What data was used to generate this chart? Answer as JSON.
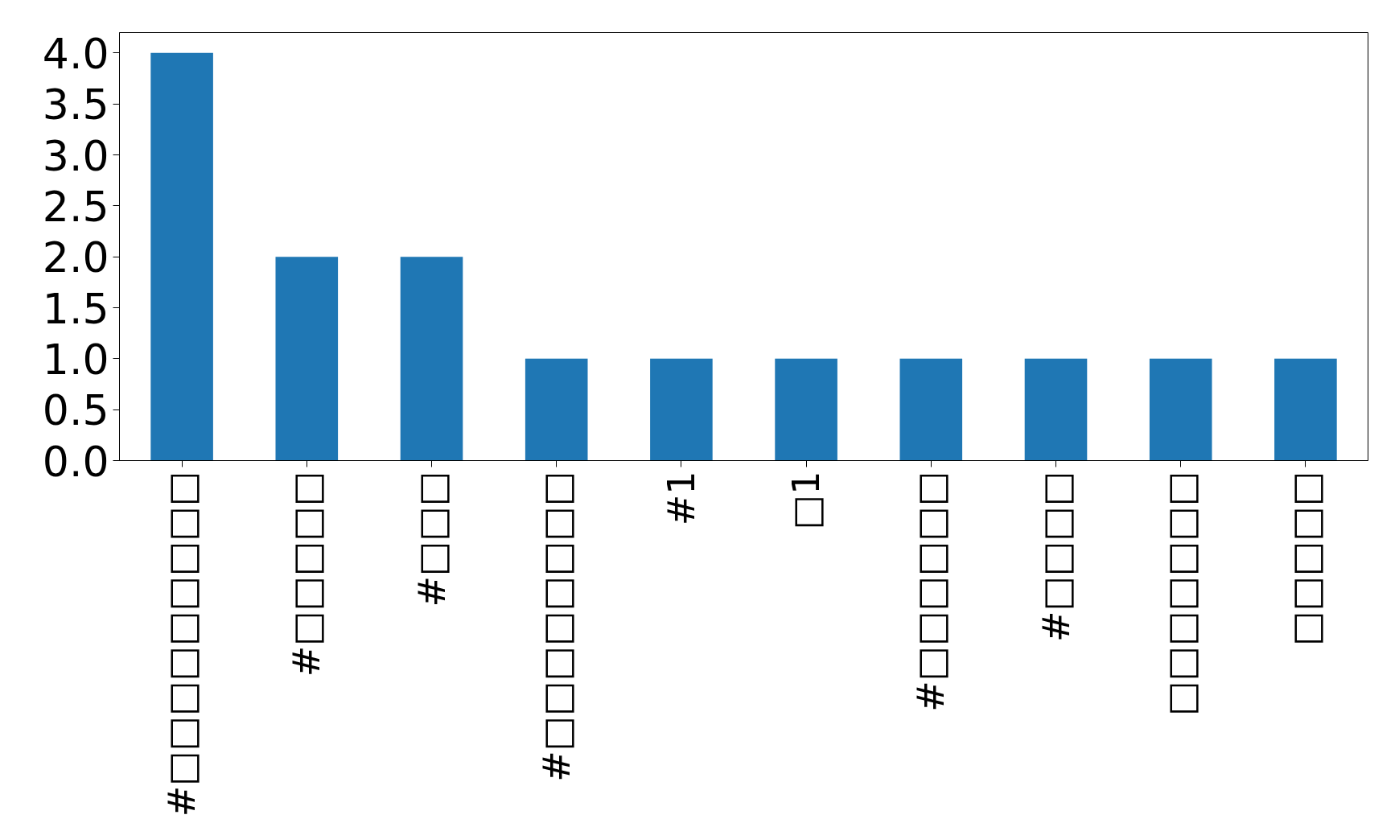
{
  "chart_data": {
    "type": "bar",
    "categories": [
      "#□□□□□□□□□",
      "#□□□□□",
      "#□□□",
      "#□□□□□□□□",
      "#1",
      "□1",
      "#□□□□□□",
      "#□□□□",
      "□□□□□□□",
      "□□□□□"
    ],
    "values": [
      4,
      2,
      2,
      1,
      1,
      1,
      1,
      1,
      1,
      1
    ],
    "color": "#1f77b4",
    "ylim": [
      0,
      4.2
    ],
    "yticks": [
      {
        "value": 0,
        "label": "0.0"
      },
      {
        "value": 0.5,
        "label": "0.5"
      },
      {
        "value": 1,
        "label": "1.0"
      },
      {
        "value": 1.5,
        "label": "1.5"
      },
      {
        "value": 2,
        "label": "2.0"
      },
      {
        "value": 2.5,
        "label": "2.5"
      },
      {
        "value": 3,
        "label": "3.0"
      },
      {
        "value": 3.5,
        "label": "3.5"
      },
      {
        "value": 4,
        "label": "4.0"
      }
    ],
    "grid": false
  }
}
